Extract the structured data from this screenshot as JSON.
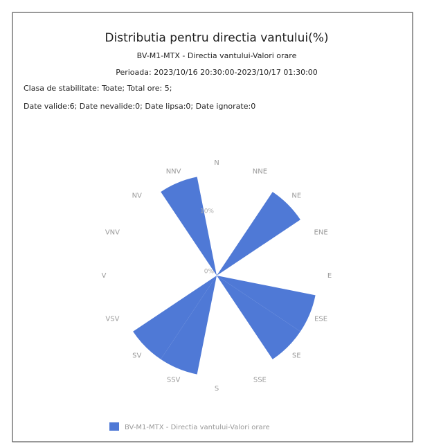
{
  "chart_data": {
    "type": "polar-bar",
    "title": "Distributia pentru directia vantului(%)",
    "subtitle": "BV-M1-MTX - Directia vantului-Valori orare",
    "period": "Perioada: 2023/10/16 20:30:00-2023/10/17 01:30:00",
    "info": [
      "Clasa de stabilitate: Toate; Total ore: 5;",
      "Date valide:6; Date nevalide:0; Date lipsa:0; Date ignorate:0"
    ],
    "categories": [
      "N",
      "NNE",
      "NE",
      "ENE",
      "E",
      "ESE",
      "SE",
      "SSE",
      "S",
      "SSV",
      "SV",
      "VSV",
      "V",
      "VNV",
      "NV",
      "NNV"
    ],
    "series": [
      {
        "name": "BV-M1-MTX - Directia vantului-Valori orare",
        "color": "#4f79d6",
        "values": [
          0,
          0,
          16.7,
          0,
          0,
          16.7,
          16.7,
          0,
          0,
          16.7,
          16.7,
          0,
          0,
          0,
          0,
          16.7
        ]
      }
    ],
    "rlim": [
      0,
      17
    ],
    "rticks": [
      {
        "value": 0,
        "label": "0%"
      },
      {
        "value": 10,
        "label": "10%"
      }
    ]
  }
}
